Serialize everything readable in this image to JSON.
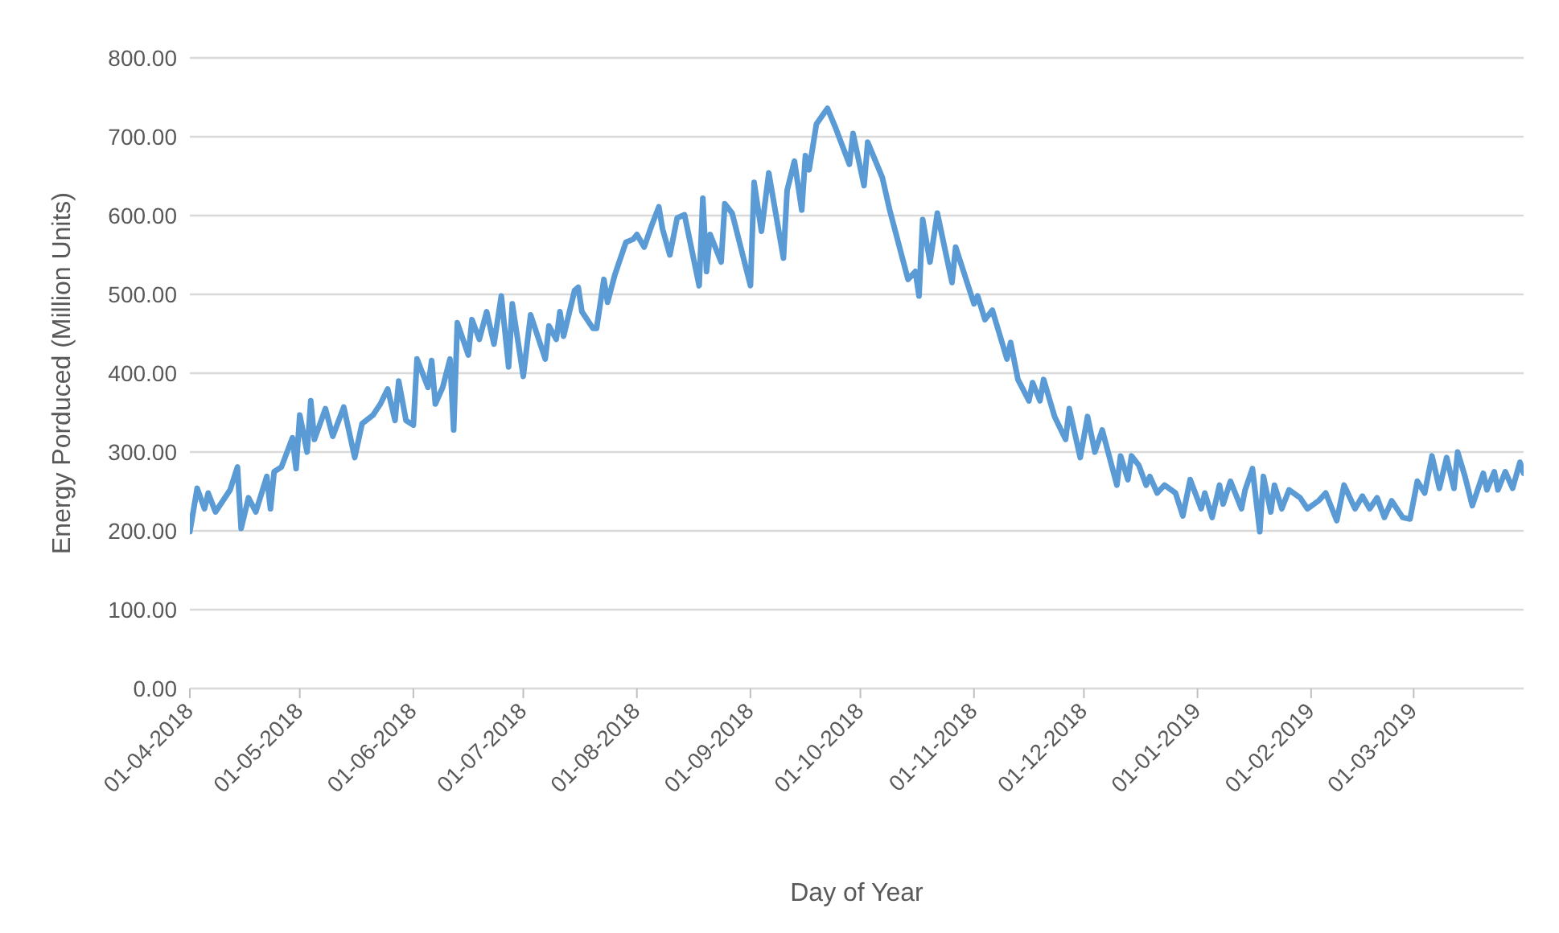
{
  "chart_data": {
    "type": "line",
    "xlabel": "Day of Year",
    "ylabel": "Energy Porduced (Million Units)",
    "grid": "y",
    "legend": false,
    "marker": "none",
    "line_style": "solid",
    "xlim": [
      "2018-04-01",
      "2019-03-31"
    ],
    "xticks": [
      {
        "value": "2018-04-01",
        "label": "01-04-2018"
      },
      {
        "value": "2018-05-01",
        "label": "01-05-2018"
      },
      {
        "value": "2018-06-01",
        "label": "01-06-2018"
      },
      {
        "value": "2018-07-01",
        "label": "01-07-2018"
      },
      {
        "value": "2018-08-01",
        "label": "01-08-2018"
      },
      {
        "value": "2018-09-01",
        "label": "01-09-2018"
      },
      {
        "value": "2018-10-01",
        "label": "01-10-2018"
      },
      {
        "value": "2018-11-01",
        "label": "01-11-2018"
      },
      {
        "value": "2018-12-01",
        "label": "01-12-2018"
      },
      {
        "value": "2019-01-01",
        "label": "01-01-2019"
      },
      {
        "value": "2019-02-01",
        "label": "01-02-2019"
      },
      {
        "value": "2019-03-01",
        "label": "01-03-2019"
      }
    ],
    "ylim": [
      0,
      800
    ],
    "yticks": [
      {
        "value": 0,
        "label": "0.00"
      },
      {
        "value": 100,
        "label": "100.00"
      },
      {
        "value": 200,
        "label": "200.00"
      },
      {
        "value": 300,
        "label": "300.00"
      },
      {
        "value": 400,
        "label": "400.00"
      },
      {
        "value": 500,
        "label": "500.00"
      },
      {
        "value": 600,
        "label": "600.00"
      },
      {
        "value": 700,
        "label": "700.00"
      },
      {
        "value": 800,
        "label": "800.00"
      }
    ],
    "x": [
      "2018-04-01",
      "2018-04-03",
      "2018-04-05",
      "2018-04-06",
      "2018-04-08",
      "2018-04-12",
      "2018-04-14",
      "2018-04-15",
      "2018-04-17",
      "2018-04-19",
      "2018-04-22",
      "2018-04-23",
      "2018-04-24",
      "2018-04-26",
      "2018-04-29",
      "2018-04-30",
      "2018-05-01",
      "2018-05-03",
      "2018-05-04",
      "2018-05-05",
      "2018-05-08",
      "2018-05-10",
      "2018-05-13",
      "2018-05-16",
      "2018-05-18",
      "2018-05-21",
      "2018-05-23",
      "2018-05-25",
      "2018-05-27",
      "2018-05-28",
      "2018-05-30",
      "2018-06-01",
      "2018-06-02",
      "2018-06-05",
      "2018-06-06",
      "2018-06-07",
      "2018-06-09",
      "2018-06-11",
      "2018-06-12",
      "2018-06-13",
      "2018-06-16",
      "2018-06-17",
      "2018-06-19",
      "2018-06-21",
      "2018-06-23",
      "2018-06-25",
      "2018-06-27",
      "2018-06-28",
      "2018-07-01",
      "2018-07-03",
      "2018-07-07",
      "2018-07-08",
      "2018-07-10",
      "2018-07-11",
      "2018-07-12",
      "2018-07-15",
      "2018-07-16",
      "2018-07-17",
      "2018-07-20",
      "2018-07-21",
      "2018-07-23",
      "2018-07-24",
      "2018-07-26",
      "2018-07-29",
      "2018-07-31",
      "2018-08-01",
      "2018-08-03",
      "2018-08-05",
      "2018-08-07",
      "2018-08-08",
      "2018-08-10",
      "2018-08-12",
      "2018-08-14",
      "2018-08-18",
      "2018-08-19",
      "2018-08-20",
      "2018-08-21",
      "2018-08-24",
      "2018-08-25",
      "2018-08-27",
      "2018-09-01",
      "2018-09-02",
      "2018-09-04",
      "2018-09-06",
      "2018-09-10",
      "2018-09-11",
      "2018-09-13",
      "2018-09-15",
      "2018-09-16",
      "2018-09-17",
      "2018-09-19",
      "2018-09-22",
      "2018-09-24",
      "2018-09-28",
      "2018-09-29",
      "2018-10-02",
      "2018-10-03",
      "2018-10-07",
      "2018-10-09",
      "2018-10-14",
      "2018-10-16",
      "2018-10-17",
      "2018-10-18",
      "2018-10-20",
      "2018-10-22",
      "2018-10-26",
      "2018-10-27",
      "2018-11-01",
      "2018-11-02",
      "2018-11-04",
      "2018-11-06",
      "2018-11-10",
      "2018-11-11",
      "2018-11-13",
      "2018-11-16",
      "2018-11-17",
      "2018-11-19",
      "2018-11-20",
      "2018-11-23",
      "2018-11-26",
      "2018-11-27",
      "2018-11-30",
      "2018-12-02",
      "2018-12-04",
      "2018-12-06",
      "2018-12-10",
      "2018-12-11",
      "2018-12-13",
      "2018-12-14",
      "2018-12-16",
      "2018-12-18",
      "2018-12-19",
      "2018-12-21",
      "2018-12-23",
      "2018-12-26",
      "2018-12-28",
      "2018-12-30",
      "2019-01-02",
      "2019-01-03",
      "2019-01-05",
      "2019-01-07",
      "2019-01-08",
      "2019-01-10",
      "2019-01-13",
      "2019-01-14",
      "2019-01-16",
      "2019-01-18",
      "2019-01-19",
      "2019-01-21",
      "2019-01-22",
      "2019-01-24",
      "2019-01-26",
      "2019-01-29",
      "2019-01-31",
      "2019-02-03",
      "2019-02-05",
      "2019-02-08",
      "2019-02-10",
      "2019-02-13",
      "2019-02-15",
      "2019-02-17",
      "2019-02-19",
      "2019-02-21",
      "2019-02-23",
      "2019-02-26",
      "2019-02-28",
      "2019-03-02",
      "2019-03-04",
      "2019-03-06",
      "2019-03-08",
      "2019-03-10",
      "2019-03-12",
      "2019-03-13",
      "2019-03-15",
      "2019-03-17",
      "2019-03-20",
      "2019-03-21",
      "2019-03-23",
      "2019-03-24",
      "2019-03-26",
      "2019-03-28",
      "2019-03-30",
      "2019-03-31"
    ],
    "series": [
      {
        "color": "#5b9bd5",
        "values": [
          199,
          254,
          228,
          248,
          224,
          252,
          281,
          203,
          242,
          224,
          269,
          228,
          275,
          281,
          318,
          279,
          347,
          300,
          365,
          316,
          355,
          320,
          357,
          293,
          336,
          347,
          361,
          380,
          340,
          390,
          340,
          334,
          418,
          382,
          416,
          361,
          382,
          418,
          328,
          464,
          423,
          468,
          443,
          478,
          437,
          498,
          408,
          488,
          396,
          474,
          418,
          460,
          443,
          478,
          447,
          505,
          509,
          478,
          457,
          457,
          519,
          490,
          525,
          566,
          570,
          576,
          560,
          587,
          611,
          583,
          550,
          597,
          601,
          511,
          622,
          529,
          576,
          541,
          615,
          603,
          511,
          642,
          580,
          654,
          546,
          632,
          669,
          607,
          676,
          658,
          716,
          736,
          714,
          665,
          704,
          638,
          693,
          648,
          607,
          519,
          529,
          498,
          595,
          541,
          603,
          515,
          560,
          488,
          498,
          468,
          480,
          418,
          439,
          392,
          365,
          388,
          365,
          392,
          345,
          316,
          355,
          293,
          345,
          300,
          328,
          258,
          295,
          265,
          295,
          283,
          258,
          269,
          248,
          258,
          248,
          219,
          265,
          228,
          248,
          217,
          258,
          234,
          263,
          228,
          252,
          279,
          199,
          269,
          224,
          258,
          228,
          252,
          242,
          228,
          238,
          248,
          213,
          258,
          228,
          244,
          228,
          242,
          217,
          238,
          217,
          215,
          263,
          248,
          295,
          254,
          293,
          254,
          300,
          269,
          232,
          273,
          252,
          275,
          252,
          275,
          254,
          287,
          273
        ]
      }
    ]
  }
}
